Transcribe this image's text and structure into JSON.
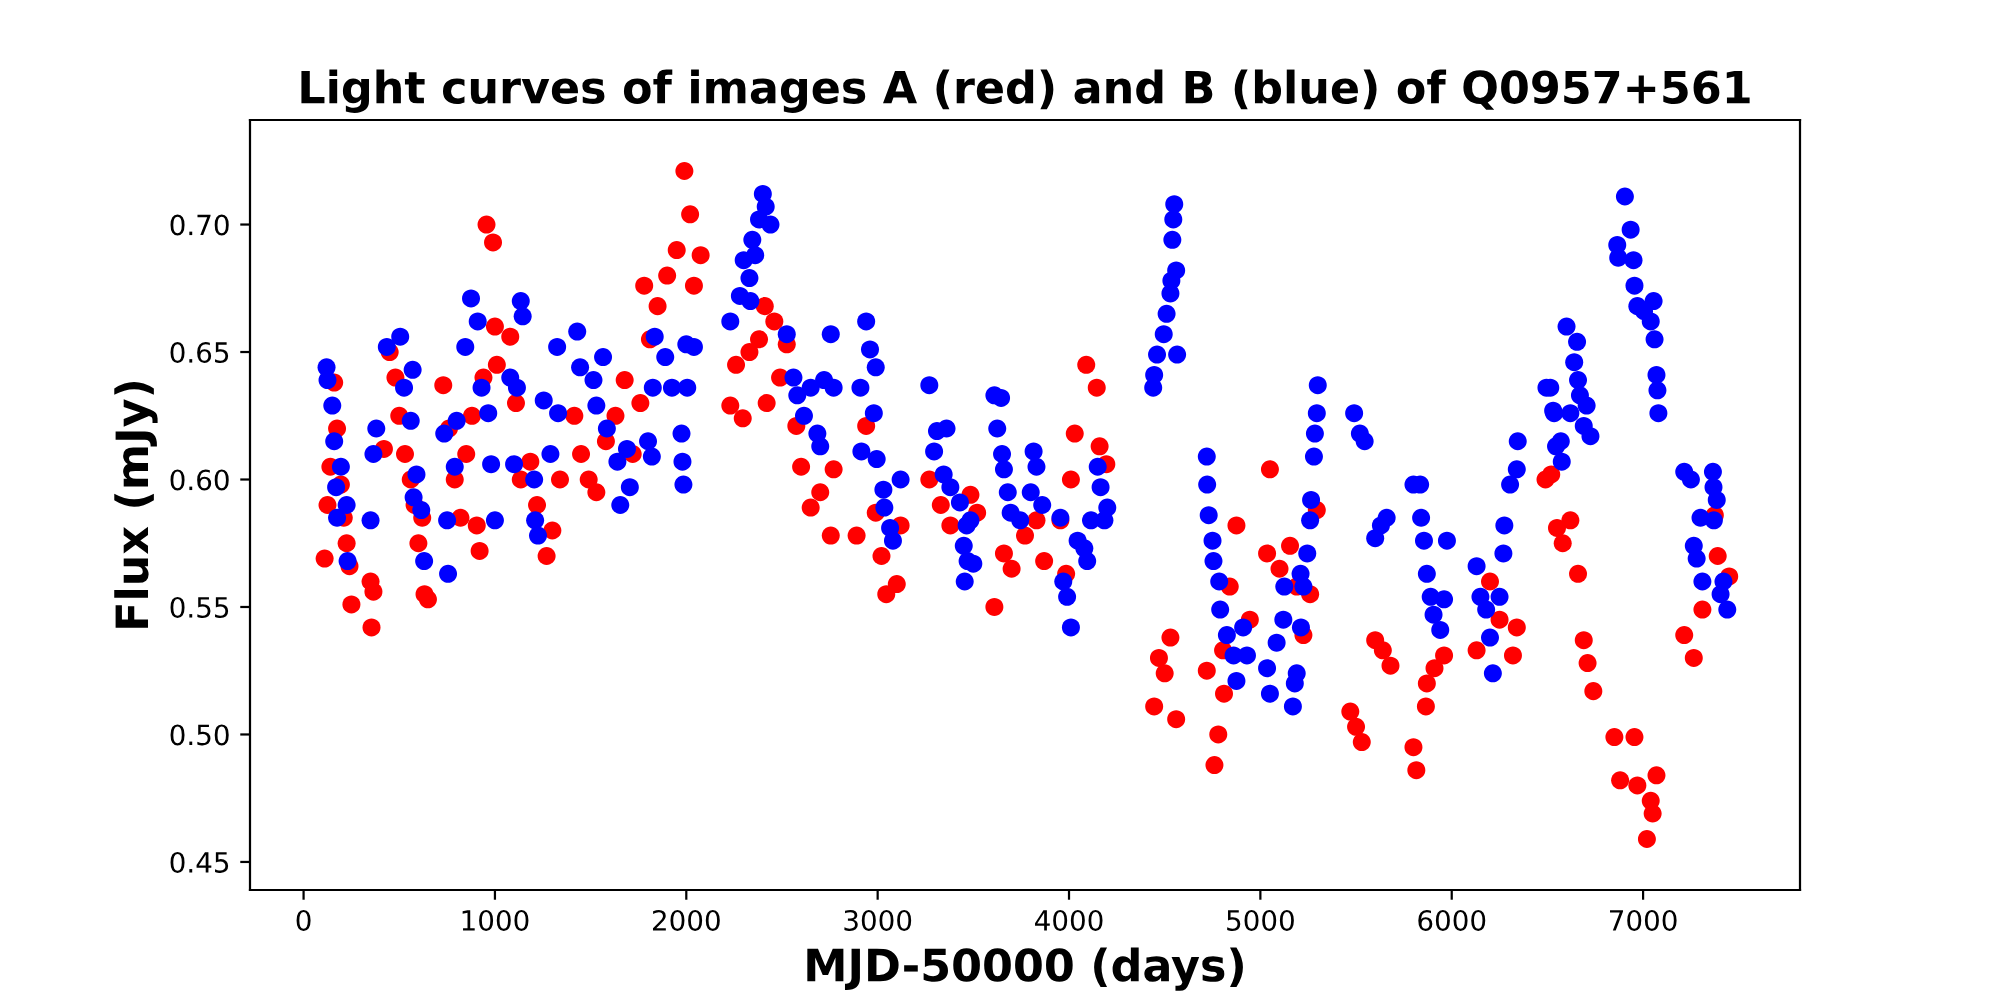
{
  "chart_data": {
    "type": "scatter",
    "title": "Light curves of images A (red) and B (blue) of Q0957+561",
    "xlabel": "MJD-50000 (days)",
    "ylabel": "Flux (mJy)",
    "xlim": [
      -280,
      7820
    ],
    "xticks": [
      0,
      1000,
      2000,
      3000,
      4000,
      5000,
      6000,
      7000
    ],
    "ylim": [
      0.439,
      0.741
    ],
    "yticks": [
      0.45,
      {
        "value": 0.5,
        "label": "0.50"
      },
      0.55,
      {
        "value": 0.6,
        "label": "0.60"
      },
      0.65,
      {
        "value": 0.7,
        "label": "0.70"
      }
    ],
    "marker": "circle",
    "grid": false,
    "legend": false,
    "series": [
      {
        "color": "#ff0000",
        "x": [
          110,
          125,
          140,
          160,
          175,
          195,
          210,
          225,
          240,
          250,
          350,
          355,
          365,
          420,
          450,
          480,
          500,
          530,
          560,
          580,
          600,
          620,
          632,
          650,
          730,
          760,
          790,
          820,
          850,
          880,
          905,
          920,
          940,
          956,
          990,
          1000,
          1010,
          1080,
          1110,
          1135,
          1185,
          1220,
          1270,
          1300,
          1340,
          1415,
          1450,
          1490,
          1530,
          1580,
          1630,
          1678,
          1720,
          1760,
          1780,
          1810,
          1850,
          1900,
          1950,
          1990,
          2020,
          2040,
          2075,
          2230,
          2260,
          2295,
          2330,
          2380,
          2410,
          2420,
          2460,
          2490,
          2525,
          2575,
          2600,
          2650,
          2700,
          2755,
          2770,
          2890,
          2940,
          2990,
          3020,
          3045,
          3100,
          3120,
          3270,
          3330,
          3380,
          3485,
          3520,
          3610,
          3660,
          3700,
          3770,
          3830,
          3870,
          3955,
          3985,
          4010,
          4030,
          4090,
          4145,
          4160,
          4195,
          4445,
          4470,
          4500,
          4530,
          4560,
          4720,
          4760,
          4780,
          4805,
          4810,
          4840,
          4875,
          4945,
          5035,
          5050,
          5100,
          5155,
          5190,
          5225,
          5260,
          5295,
          5470,
          5500,
          5530,
          5600,
          5640,
          5680,
          5800,
          5815,
          5865,
          5870,
          5910,
          5960,
          6130,
          6200,
          6250,
          6320,
          6340,
          6490,
          6520,
          6550,
          6580,
          6620,
          6660,
          6690,
          6710,
          6740,
          6850,
          6880,
          6955,
          6970,
          7020,
          7040,
          7050,
          7070,
          7215,
          7265,
          7310,
          7375,
          7390,
          7450
        ],
        "values": [
          0.569,
          0.59,
          0.605,
          0.638,
          0.62,
          0.598,
          0.585,
          0.575,
          0.566,
          0.551,
          0.56,
          0.542,
          0.556,
          0.612,
          0.65,
          0.64,
          0.625,
          0.61,
          0.6,
          0.59,
          0.575,
          0.585,
          0.555,
          0.553,
          0.637,
          0.62,
          0.6,
          0.585,
          0.61,
          0.625,
          0.582,
          0.572,
          0.64,
          0.7,
          0.693,
          0.66,
          0.645,
          0.656,
          0.63,
          0.6,
          0.607,
          0.59,
          0.57,
          0.58,
          0.6,
          0.625,
          0.61,
          0.6,
          0.595,
          0.615,
          0.625,
          0.639,
          0.61,
          0.63,
          0.676,
          0.655,
          0.668,
          0.68,
          0.69,
          0.721,
          0.704,
          0.676,
          0.688,
          0.629,
          0.645,
          0.624,
          0.65,
          0.655,
          0.668,
          0.63,
          0.662,
          0.64,
          0.653,
          0.621,
          0.605,
          0.589,
          0.595,
          0.578,
          0.604,
          0.578,
          0.621,
          0.587,
          0.57,
          0.555,
          0.559,
          0.582,
          0.6,
          0.59,
          0.582,
          0.594,
          0.587,
          0.55,
          0.571,
          0.565,
          0.578,
          0.584,
          0.568,
          0.584,
          0.563,
          0.6,
          0.618,
          0.645,
          0.636,
          0.613,
          0.606,
          0.511,
          0.53,
          0.524,
          0.538,
          0.506,
          0.525,
          0.488,
          0.5,
          0.533,
          0.516,
          0.558,
          0.582,
          0.545,
          0.571,
          0.604,
          0.565,
          0.574,
          0.558,
          0.539,
          0.555,
          0.588,
          0.509,
          0.503,
          0.497,
          0.537,
          0.533,
          0.527,
          0.495,
          0.486,
          0.511,
          0.52,
          0.526,
          0.531,
          0.533,
          0.56,
          0.545,
          0.531,
          0.542,
          0.6,
          0.602,
          0.581,
          0.575,
          0.584,
          0.563,
          0.537,
          0.528,
          0.517,
          0.499,
          0.482,
          0.499,
          0.48,
          0.459,
          0.474,
          0.469,
          0.484,
          0.539,
          0.53,
          0.549,
          0.586,
          0.57,
          0.562
        ]
      },
      {
        "color": "#0000ff",
        "x": [
          120,
          125,
          150,
          160,
          195,
          170,
          175,
          225,
          230,
          350,
          365,
          380,
          435,
          505,
          525,
          560,
          570,
          575,
          590,
          615,
          630,
          735,
          750,
          755,
          790,
          800,
          845,
          875,
          910,
          930,
          965,
          980,
          1000,
          1080,
          1100,
          1115,
          1135,
          1145,
          1205,
          1210,
          1225,
          1255,
          1290,
          1325,
          1330,
          1430,
          1445,
          1515,
          1530,
          1565,
          1585,
          1640,
          1655,
          1690,
          1705,
          1800,
          1820,
          1825,
          1835,
          1890,
          1925,
          1975,
          1980,
          1985,
          2000,
          2005,
          2040,
          2230,
          2280,
          2300,
          2330,
          2335,
          2345,
          2360,
          2380,
          2400,
          2415,
          2440,
          2525,
          2560,
          2580,
          2615,
          2650,
          2685,
          2700,
          2720,
          2755,
          2770,
          2910,
          2915,
          2940,
          2960,
          2980,
          2990,
          2995,
          3030,
          3035,
          3065,
          3080,
          3120,
          3270,
          3295,
          3310,
          3345,
          3360,
          3380,
          3430,
          3450,
          3455,
          3465,
          3470,
          3485,
          3500,
          3610,
          3625,
          3645,
          3650,
          3660,
          3680,
          3695,
          3745,
          3800,
          3815,
          3830,
          3860,
          3955,
          3970,
          3990,
          4010,
          4045,
          4080,
          4095,
          4115,
          4150,
          4165,
          4185,
          4200,
          4440,
          4445,
          4460,
          4495,
          4510,
          4530,
          4535,
          4540,
          4545,
          4550,
          4560,
          4565,
          4720,
          4722,
          4730,
          4750,
          4755,
          4785,
          4790,
          4825,
          4860,
          4875,
          4910,
          4930,
          5035,
          5050,
          5085,
          5120,
          5125,
          5170,
          5180,
          5190,
          5210,
          5212,
          5225,
          5245,
          5260,
          5265,
          5280,
          5285,
          5295,
          5300,
          5490,
          5520,
          5545,
          5600,
          5630,
          5660,
          5800,
          5835,
          5840,
          5855,
          5870,
          5890,
          5905,
          5940,
          5960,
          5975,
          6130,
          6150,
          6180,
          6200,
          6215,
          6250,
          6270,
          6275,
          6305,
          6340,
          6345,
          6495,
          6515,
          6530,
          6535,
          6545,
          6570,
          6575,
          6600,
          6620,
          6640,
          6655,
          6660,
          6670,
          6690,
          6705,
          6725,
          6865,
          6870,
          6905,
          6935,
          6950,
          6955,
          6970,
          7005,
          7040,
          7055,
          7060,
          7070,
          7075,
          7080,
          7215,
          7250,
          7265,
          7280,
          7300,
          7310,
          7365,
          7368,
          7370,
          7385,
          7405,
          7420,
          7440
        ],
        "values": [
          0.644,
          0.639,
          0.629,
          0.615,
          0.605,
          0.597,
          0.585,
          0.59,
          0.568,
          0.584,
          0.61,
          0.62,
          0.652,
          0.656,
          0.636,
          0.623,
          0.643,
          0.593,
          0.602,
          0.588,
          0.568,
          0.618,
          0.584,
          0.563,
          0.605,
          0.623,
          0.652,
          0.671,
          0.662,
          0.636,
          0.626,
          0.606,
          0.584,
          0.64,
          0.606,
          0.636,
          0.67,
          0.664,
          0.6,
          0.584,
          0.578,
          0.631,
          0.61,
          0.652,
          0.626,
          0.658,
          0.644,
          0.639,
          0.629,
          0.648,
          0.62,
          0.607,
          0.59,
          0.612,
          0.597,
          0.615,
          0.609,
          0.636,
          0.656,
          0.648,
          0.636,
          0.618,
          0.607,
          0.598,
          0.653,
          0.636,
          0.652,
          0.662,
          0.672,
          0.686,
          0.679,
          0.67,
          0.694,
          0.688,
          0.702,
          0.712,
          0.707,
          0.7,
          0.657,
          0.64,
          0.633,
          0.625,
          0.636,
          0.618,
          0.613,
          0.639,
          0.657,
          0.636,
          0.636,
          0.611,
          0.662,
          0.651,
          0.626,
          0.644,
          0.608,
          0.596,
          0.589,
          0.581,
          0.576,
          0.6,
          0.637,
          0.611,
          0.619,
          0.602,
          0.62,
          0.597,
          0.591,
          0.574,
          0.56,
          0.582,
          0.568,
          0.584,
          0.567,
          0.633,
          0.62,
          0.632,
          0.61,
          0.604,
          0.595,
          0.587,
          0.584,
          0.595,
          0.611,
          0.605,
          0.59,
          0.585,
          0.56,
          0.554,
          0.542,
          0.576,
          0.573,
          0.568,
          0.584,
          0.605,
          0.597,
          0.584,
          0.589,
          0.636,
          0.641,
          0.649,
          0.657,
          0.665,
          0.673,
          0.678,
          0.694,
          0.702,
          0.708,
          0.682,
          0.649,
          0.609,
          0.598,
          0.586,
          0.576,
          0.568,
          0.56,
          0.549,
          0.539,
          0.531,
          0.521,
          0.542,
          0.531,
          0.526,
          0.516,
          0.536,
          0.545,
          0.558,
          0.511,
          0.52,
          0.524,
          0.563,
          0.542,
          0.558,
          0.571,
          0.584,
          0.592,
          0.609,
          0.618,
          0.626,
          0.637,
          0.626,
          0.618,
          0.615,
          0.577,
          0.582,
          0.585,
          0.598,
          0.598,
          0.585,
          0.576,
          0.563,
          0.554,
          0.547,
          0.541,
          0.553,
          0.576,
          0.566,
          0.554,
          0.549,
          0.538,
          0.524,
          0.554,
          0.571,
          0.582,
          0.598,
          0.604,
          0.615,
          0.636,
          0.636,
          0.627,
          0.626,
          0.613,
          0.615,
          0.607,
          0.66,
          0.626,
          0.646,
          0.654,
          0.639,
          0.633,
          0.621,
          0.629,
          0.617,
          0.692,
          0.687,
          0.711,
          0.698,
          0.686,
          0.676,
          0.668,
          0.666,
          0.662,
          0.67,
          0.655,
          0.641,
          0.635,
          0.626,
          0.603,
          0.6,
          0.574,
          0.569,
          0.585,
          0.56,
          0.603,
          0.597,
          0.584,
          0.592,
          0.555,
          0.56,
          0.549
        ]
      }
    ]
  }
}
